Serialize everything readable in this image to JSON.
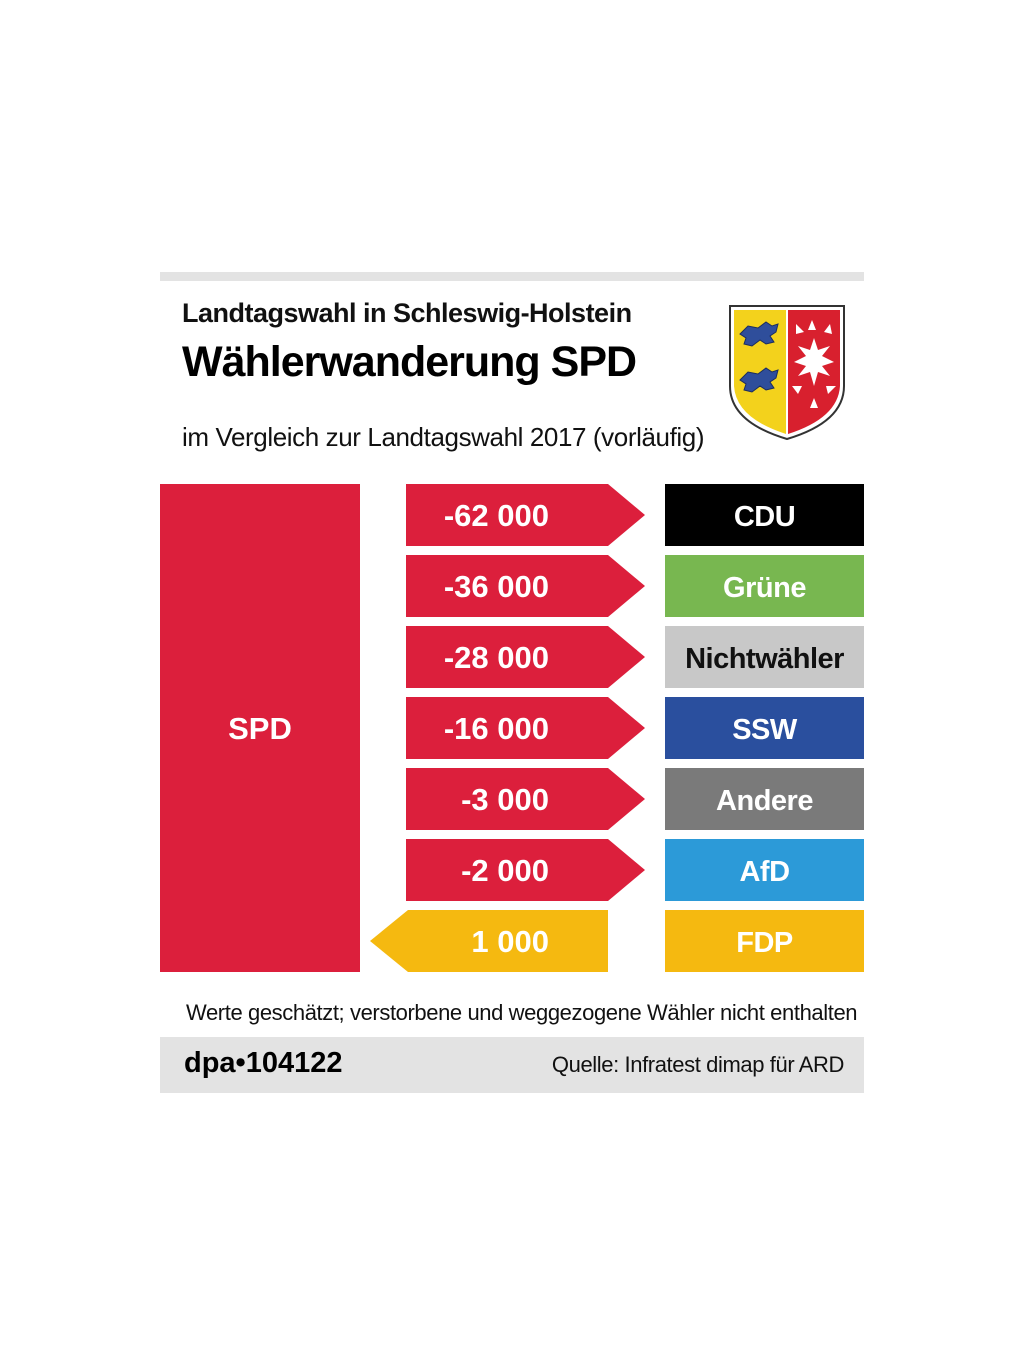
{
  "header": {
    "kicker": "Landtagswahl in Schleswig-Holstein",
    "title": "Wählerwanderung SPD",
    "subtitle": "im Vergleich zur Landtagswahl 2017 (vorläufig)"
  },
  "crest": {
    "icon": "schleswig-holstein-coat-of-arms-icon"
  },
  "chart_data": {
    "type": "bar",
    "source_party": "SPD",
    "source_color": "#dc1f3c",
    "rows": [
      {
        "label": "-62 000",
        "value": -62000,
        "party": "CDU",
        "party_color": "#000000",
        "flow_color": "#dc1f3c"
      },
      {
        "label": "-36 000",
        "value": -36000,
        "party": "Grüne",
        "party_color": "#78b750",
        "flow_color": "#dc1f3c"
      },
      {
        "label": "-28 000",
        "value": -28000,
        "party": "Nichtwähler",
        "party_color": "#c8c8c8",
        "flow_color": "#dc1f3c"
      },
      {
        "label": "-16 000",
        "value": -16000,
        "party": "SSW",
        "party_color": "#2a4f9e",
        "flow_color": "#dc1f3c"
      },
      {
        "label": "-3 000",
        "value": -3000,
        "party": "Andere",
        "party_color": "#7a7a7a",
        "flow_color": "#dc1f3c"
      },
      {
        "label": "-2 000",
        "value": -2000,
        "party": "AfD",
        "party_color": "#2c9ad8",
        "flow_color": "#dc1f3c"
      },
      {
        "label": "1 000",
        "value": 1000,
        "party": "FDP",
        "party_color": "#f5b910",
        "flow_color": "#f5b910"
      }
    ]
  },
  "footnote": "Werte geschätzt; verstorbene und weggezogene Wähler nicht enthalten",
  "footer": {
    "agency": "dpa•104122",
    "source": "Quelle: Infratest dimap für ARD"
  }
}
